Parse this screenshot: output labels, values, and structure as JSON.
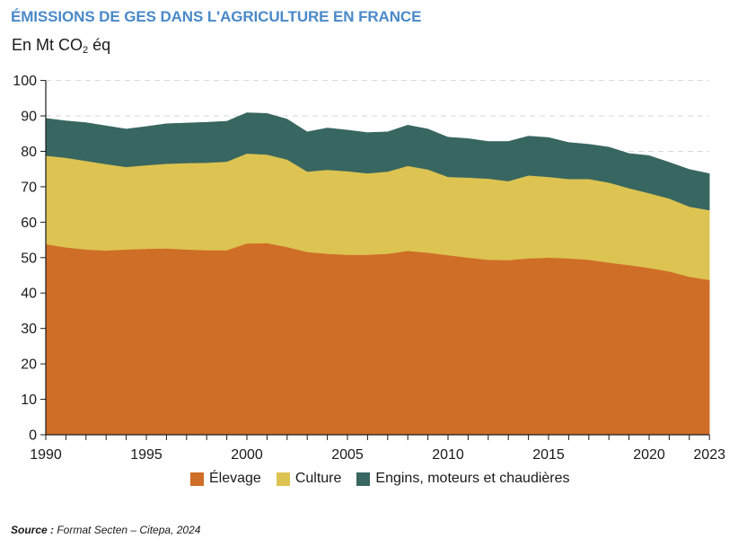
{
  "header": {
    "title": "ÉMISSIONS DE GES DANS L'AGRICULTURE EN FRANCE",
    "unit_prefix": "En Mt CO",
    "unit_sub": "2",
    "unit_suffix": " éq"
  },
  "colors": {
    "title": "#4a89c8",
    "elevage": "#cf6e26",
    "culture": "#dcc352",
    "engins": "#386660"
  },
  "chart_data": {
    "type": "area",
    "stacked": true,
    "title": "ÉMISSIONS DE GES DANS L'AGRICULTURE EN FRANCE",
    "ylabel": "En Mt CO2 éq",
    "xlabel": "",
    "ylim": [
      0,
      100
    ],
    "xlim": [
      1990,
      2023
    ],
    "grid": "horizontal dashed at 90 and 100",
    "legend_position": "bottom-center",
    "y_ticks": [
      "0",
      "10",
      "20",
      "30",
      "40",
      "50",
      "60",
      "70",
      "80",
      "90",
      "100"
    ],
    "x_tick_labels": [
      {
        "year": 1990,
        "label": "1990"
      },
      {
        "year": 1995,
        "label": "1995"
      },
      {
        "year": 2000,
        "label": "2000"
      },
      {
        "year": 2005,
        "label": "2005"
      },
      {
        "year": 2010,
        "label": "2010"
      },
      {
        "year": 2015,
        "label": "2015"
      },
      {
        "year": 2020,
        "label": "2020"
      },
      {
        "year": 2023,
        "label": "2023"
      }
    ],
    "x": [
      1990,
      1991,
      1992,
      1993,
      1994,
      1995,
      1996,
      1997,
      1998,
      1999,
      2000,
      2001,
      2002,
      2003,
      2004,
      2005,
      2006,
      2007,
      2008,
      2009,
      2010,
      2011,
      2012,
      2013,
      2014,
      2015,
      2016,
      2017,
      2018,
      2019,
      2020,
      2021,
      2022,
      2023
    ],
    "series": [
      {
        "name": "Élevage",
        "key": "elevage",
        "values": [
          53.8,
          52.9,
          52.3,
          52.0,
          52.3,
          52.5,
          52.6,
          52.3,
          52.1,
          52.1,
          54.0,
          54.1,
          53.0,
          51.6,
          51.1,
          50.8,
          50.8,
          51.1,
          51.9,
          51.4,
          50.7,
          50.0,
          49.4,
          49.3,
          49.8,
          50.0,
          49.8,
          49.4,
          48.6,
          47.9,
          47.1,
          46.1,
          44.6,
          43.7
        ]
      },
      {
        "name": "Culture",
        "key": "culture",
        "values": [
          25.0,
          25.3,
          25.0,
          24.4,
          23.3,
          23.6,
          23.9,
          24.4,
          24.7,
          25.0,
          25.4,
          25.0,
          24.7,
          22.7,
          23.7,
          23.6,
          23.0,
          23.2,
          24.0,
          23.5,
          22.1,
          22.6,
          22.9,
          22.3,
          23.4,
          22.8,
          22.4,
          22.8,
          22.6,
          21.7,
          21.1,
          20.6,
          19.8,
          19.7
        ]
      },
      {
        "name": "Engins, moteurs et chaudières",
        "key": "engins",
        "values": [
          10.5,
          10.4,
          10.8,
          10.8,
          10.7,
          10.9,
          11.3,
          11.3,
          11.4,
          11.4,
          11.5,
          11.6,
          11.4,
          11.2,
          11.8,
          11.6,
          11.5,
          11.2,
          11.5,
          11.4,
          11.2,
          11.0,
          10.5,
          11.2,
          11.1,
          11.1,
          10.3,
          9.8,
          10.0,
          9.8,
          10.6,
          10.2,
          10.5,
          10.3
        ]
      }
    ]
  },
  "legend": [
    {
      "label": "Élevage",
      "key": "elevage"
    },
    {
      "label": "Culture",
      "key": "culture"
    },
    {
      "label": "Engins, moteurs et chaudières",
      "key": "engins"
    }
  ],
  "source": {
    "label": "Source :",
    "text": " Format Secten – Citepa, 2024"
  }
}
